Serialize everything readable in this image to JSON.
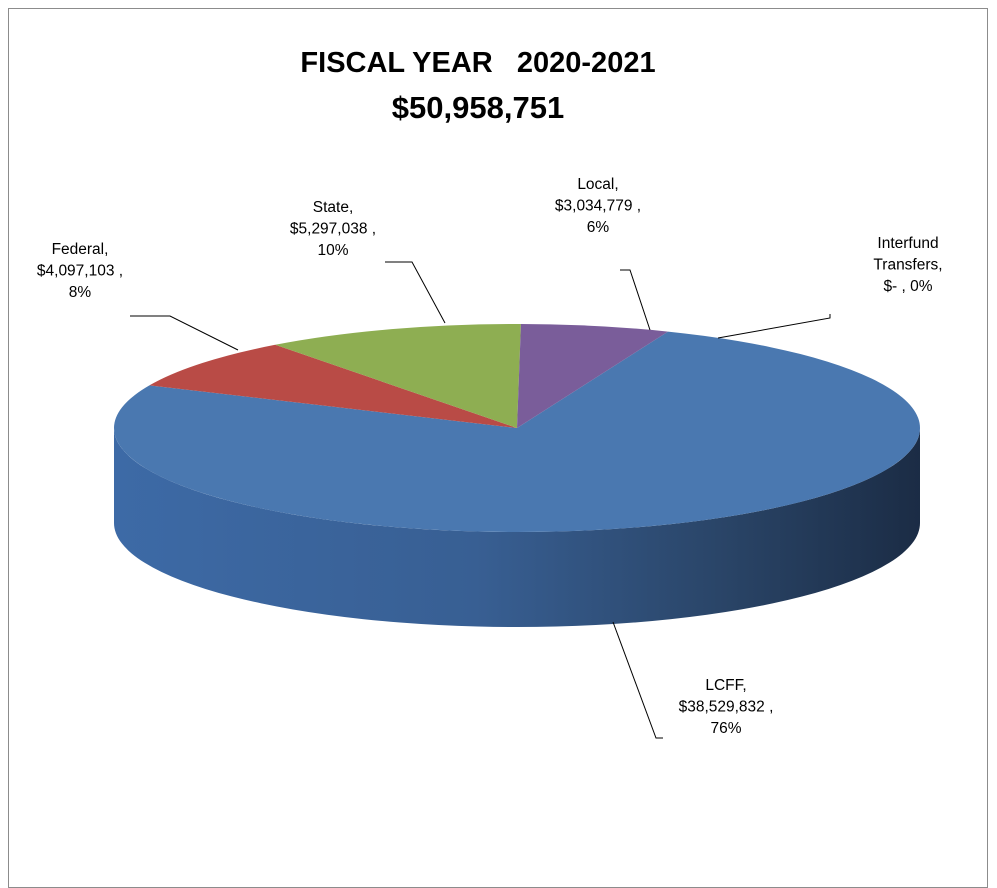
{
  "chart_data": {
    "type": "pie",
    "title": "FISCAL YEAR   2020-2021",
    "subtitle": "$50,958,751",
    "total": 50958751,
    "three_d": true,
    "legend": "none",
    "slices": [
      {
        "label": "LCFF",
        "value": 38529832,
        "value_text": "$38,529,832 ,",
        "percent_text": "76%",
        "color": "#4a78b0",
        "label_lines": [
          "LCFF,",
          "$38,529,832 ,",
          "76%"
        ]
      },
      {
        "label": "Federal",
        "value": 4097103,
        "value_text": "$4,097,103 ,",
        "percent_text": "8%",
        "color": "#b94b46",
        "label_lines": [
          "Federal,",
          "$4,097,103 ,",
          "8%"
        ]
      },
      {
        "label": "State",
        "value": 5297038,
        "value_text": "$5,297,038 ,",
        "percent_text": "10%",
        "color": "#8eae52",
        "label_lines": [
          "State,",
          "$5,297,038 ,",
          "10%"
        ]
      },
      {
        "label": "Local",
        "value": 3034779,
        "value_text": "$3,034,779 ,",
        "percent_text": "6%",
        "color": "#7a5d9a",
        "label_lines": [
          "Local,",
          "$3,034,779 ,",
          "6%"
        ]
      },
      {
        "label": "Interfund Transfers",
        "value": 0,
        "value_text": "$-   , 0%",
        "percent_text": "0%",
        "color": "#4bacc6",
        "label_lines": [
          "Interfund",
          "Transfers,",
          "$-   , 0%"
        ]
      }
    ]
  }
}
